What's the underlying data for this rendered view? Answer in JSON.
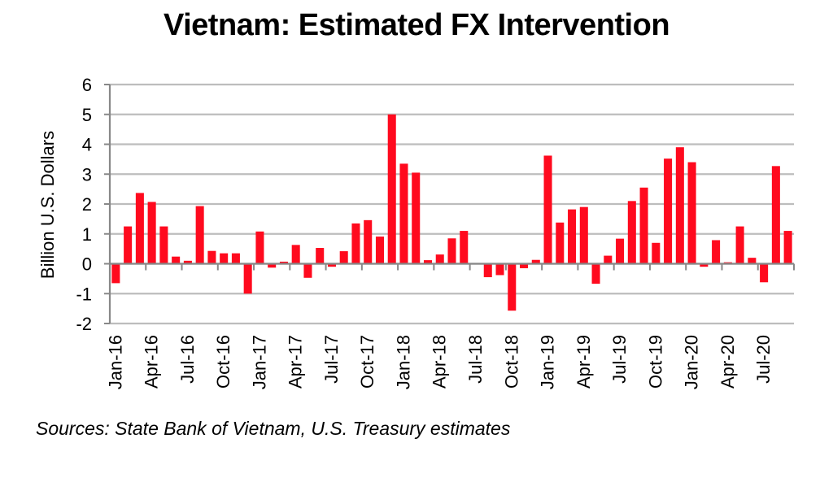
{
  "chart_data": {
    "type": "bar",
    "title": "Vietnam: Estimated FX Intervention",
    "xlabel": "",
    "ylabel": "Billion U.S. Dollars",
    "ylim": [
      -2,
      6
    ],
    "yticks": [
      6,
      5,
      4,
      3,
      2,
      1,
      0,
      -1,
      -2
    ],
    "grid": true,
    "bar_color": "#ff0a1e",
    "categories": [
      "Jan-16",
      "Feb-16",
      "Mar-16",
      "Apr-16",
      "May-16",
      "Jun-16",
      "Jul-16",
      "Aug-16",
      "Sep-16",
      "Oct-16",
      "Nov-16",
      "Dec-16",
      "Jan-17",
      "Feb-17",
      "Mar-17",
      "Apr-17",
      "May-17",
      "Jun-17",
      "Jul-17",
      "Aug-17",
      "Sep-17",
      "Oct-17",
      "Nov-17",
      "Dec-17",
      "Jan-18",
      "Feb-18",
      "Mar-18",
      "Apr-18",
      "May-18",
      "Jun-18",
      "Jul-18",
      "Aug-18",
      "Sep-18",
      "Oct-18",
      "Nov-18",
      "Dec-18",
      "Jan-19",
      "Feb-19",
      "Mar-19",
      "Apr-19",
      "May-19",
      "Jun-19",
      "Jul-19",
      "Aug-19",
      "Sep-19",
      "Oct-19",
      "Nov-19",
      "Dec-19",
      "Jan-20",
      "Feb-20",
      "Mar-20",
      "Apr-20",
      "May-20",
      "Jun-20",
      "Jul-20",
      "Aug-20",
      "Sep-20"
    ],
    "tick_labels": [
      "Jan-16",
      "Apr-16",
      "Jul-16",
      "Oct-16",
      "Jan-17",
      "Apr-17",
      "Jul-17",
      "Oct-17",
      "Jan-18",
      "Apr-18",
      "Jul-18",
      "Oct-18",
      "Jan-19",
      "Apr-19",
      "Jul-19",
      "Oct-19",
      "Jan-20",
      "Apr-20",
      "Jul-20"
    ],
    "series": [
      {
        "name": "Estimated FX Intervention",
        "values": [
          -0.65,
          1.25,
          2.37,
          2.07,
          1.25,
          0.24,
          0.1,
          1.93,
          0.43,
          0.35,
          0.35,
          -1.0,
          1.08,
          -0.13,
          0.07,
          0.63,
          -0.47,
          0.53,
          -0.1,
          0.42,
          1.35,
          1.46,
          0.91,
          5.0,
          3.35,
          3.05,
          0.12,
          0.31,
          0.85,
          1.1,
          0.0,
          -0.45,
          -0.38,
          -1.57,
          -0.15,
          0.13,
          3.62,
          1.38,
          1.82,
          1.9,
          -0.67,
          0.27,
          0.84,
          2.1,
          2.55,
          0.7,
          3.52,
          3.9,
          3.4,
          -0.1,
          0.79,
          0.05,
          1.25,
          0.2,
          -0.62,
          3.27,
          1.1
        ]
      }
    ],
    "source": "Sources: State Bank of Vietnam, U.S. Treasury estimates"
  }
}
